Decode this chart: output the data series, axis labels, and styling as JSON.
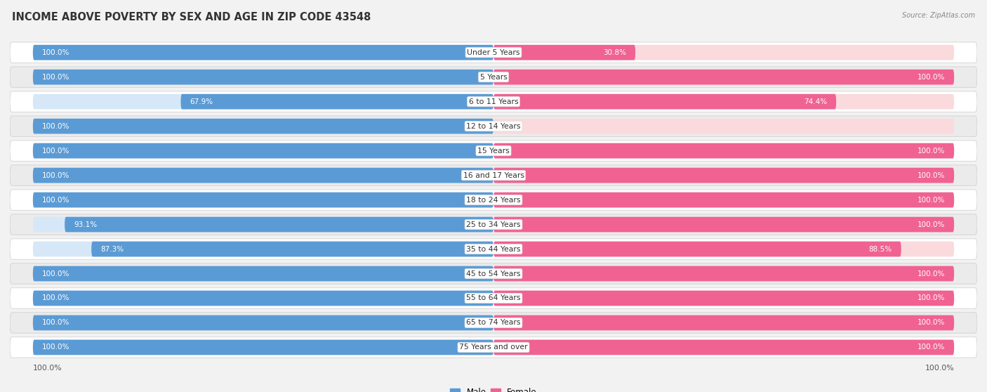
{
  "title": "INCOME ABOVE POVERTY BY SEX AND AGE IN ZIP CODE 43548",
  "source": "Source: ZipAtlas.com",
  "categories": [
    "Under 5 Years",
    "5 Years",
    "6 to 11 Years",
    "12 to 14 Years",
    "15 Years",
    "16 and 17 Years",
    "18 to 24 Years",
    "25 to 34 Years",
    "35 to 44 Years",
    "45 to 54 Years",
    "55 to 64 Years",
    "65 to 74 Years",
    "75 Years and over"
  ],
  "male_values": [
    100.0,
    100.0,
    67.9,
    100.0,
    100.0,
    100.0,
    100.0,
    93.1,
    87.3,
    100.0,
    100.0,
    100.0,
    100.0
  ],
  "female_values": [
    30.8,
    100.0,
    74.4,
    0.0,
    100.0,
    100.0,
    100.0,
    100.0,
    88.5,
    100.0,
    100.0,
    100.0,
    100.0
  ],
  "male_color": "#5b9bd5",
  "female_color": "#f06292",
  "male_color_light": "#d6e8f7",
  "female_color_light": "#fadadd",
  "bar_height": 0.62,
  "background_color": "#f2f2f2",
  "row_even_color": "#ffffff",
  "row_odd_color": "#ebebeb",
  "title_fontsize": 10.5,
  "label_fontsize": 7.8,
  "value_fontsize": 7.5,
  "legend_fontsize": 8.5,
  "axis_label_color": "#555555",
  "value_label_color_white": "#ffffff",
  "value_label_color_dark": "#555555"
}
